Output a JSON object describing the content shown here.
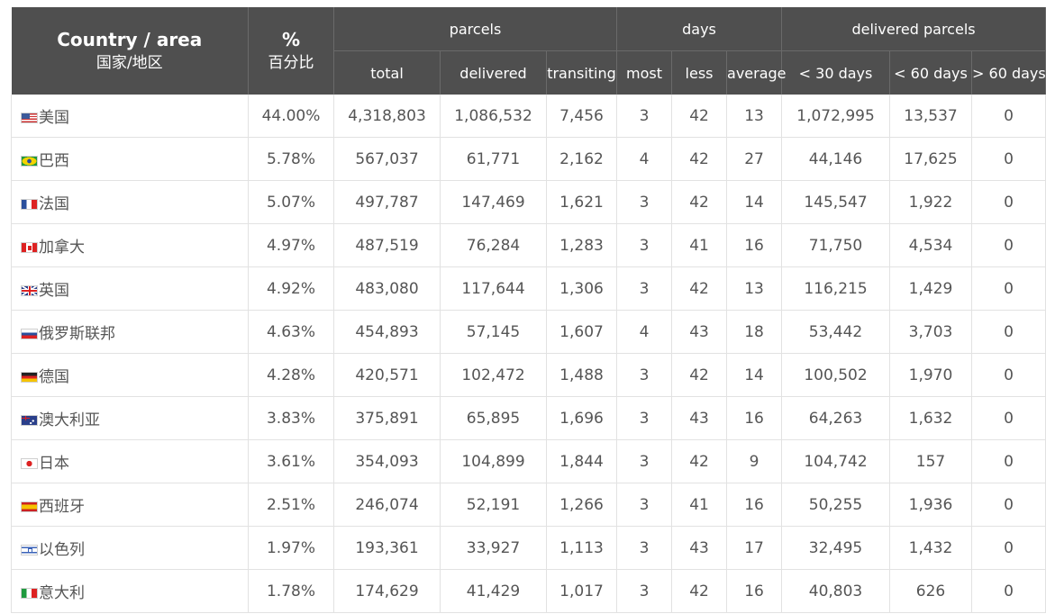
{
  "header": {
    "country_area": "Country / area",
    "country_area_zh": "国家/地区",
    "percent": "%",
    "percent_zh": "百分比",
    "groups": {
      "parcels": "parcels",
      "days": "days",
      "delivered_parcels": "delivered parcels"
    },
    "columns": {
      "total": "total",
      "delivered": "delivered",
      "transiting": "transiting",
      "most": "most",
      "less": "less",
      "average": "average",
      "lt30": "< 30 days",
      "lt60": "< 60 days",
      "gt60": "> 60 days"
    }
  },
  "rows": [
    {
      "flag": "us-flag-icon",
      "country": "美国",
      "percent": "44.00%",
      "total": "4,318,803",
      "delivered": "1,086,532",
      "transiting": "7,456",
      "most": "3",
      "less": "42",
      "average": "13",
      "lt30": "1,072,995",
      "lt60": "13,537",
      "gt60": "0"
    },
    {
      "flag": "br-flag-icon",
      "country": "巴西",
      "percent": "5.78%",
      "total": "567,037",
      "delivered": "61,771",
      "transiting": "2,162",
      "most": "4",
      "less": "42",
      "average": "27",
      "lt30": "44,146",
      "lt60": "17,625",
      "gt60": "0"
    },
    {
      "flag": "fr-flag-icon",
      "country": "法国",
      "percent": "5.07%",
      "total": "497,787",
      "delivered": "147,469",
      "transiting": "1,621",
      "most": "3",
      "less": "42",
      "average": "14",
      "lt30": "145,547",
      "lt60": "1,922",
      "gt60": "0"
    },
    {
      "flag": "ca-flag-icon",
      "country": "加拿大",
      "percent": "4.97%",
      "total": "487,519",
      "delivered": "76,284",
      "transiting": "1,283",
      "most": "3",
      "less": "41",
      "average": "16",
      "lt30": "71,750",
      "lt60": "4,534",
      "gt60": "0"
    },
    {
      "flag": "gb-flag-icon",
      "country": "英国",
      "percent": "4.92%",
      "total": "483,080",
      "delivered": "117,644",
      "transiting": "1,306",
      "most": "3",
      "less": "42",
      "average": "13",
      "lt30": "116,215",
      "lt60": "1,429",
      "gt60": "0"
    },
    {
      "flag": "ru-flag-icon",
      "country": "俄罗斯联邦",
      "percent": "4.63%",
      "total": "454,893",
      "delivered": "57,145",
      "transiting": "1,607",
      "most": "4",
      "less": "43",
      "average": "18",
      "lt30": "53,442",
      "lt60": "3,703",
      "gt60": "0"
    },
    {
      "flag": "de-flag-icon",
      "country": "德国",
      "percent": "4.28%",
      "total": "420,571",
      "delivered": "102,472",
      "transiting": "1,488",
      "most": "3",
      "less": "42",
      "average": "14",
      "lt30": "100,502",
      "lt60": "1,970",
      "gt60": "0"
    },
    {
      "flag": "au-flag-icon",
      "country": "澳大利亚",
      "percent": "3.83%",
      "total": "375,891",
      "delivered": "65,895",
      "transiting": "1,696",
      "most": "3",
      "less": "43",
      "average": "16",
      "lt30": "64,263",
      "lt60": "1,632",
      "gt60": "0"
    },
    {
      "flag": "jp-flag-icon",
      "country": "日本",
      "percent": "3.61%",
      "total": "354,093",
      "delivered": "104,899",
      "transiting": "1,844",
      "most": "3",
      "less": "42",
      "average": "9",
      "lt30": "104,742",
      "lt60": "157",
      "gt60": "0"
    },
    {
      "flag": "es-flag-icon",
      "country": "西班牙",
      "percent": "2.51%",
      "total": "246,074",
      "delivered": "52,191",
      "transiting": "1,266",
      "most": "3",
      "less": "41",
      "average": "16",
      "lt30": "50,255",
      "lt60": "1,936",
      "gt60": "0"
    },
    {
      "flag": "il-flag-icon",
      "country": "以色列",
      "percent": "1.97%",
      "total": "193,361",
      "delivered": "33,927",
      "transiting": "1,113",
      "most": "3",
      "less": "43",
      "average": "17",
      "lt30": "32,495",
      "lt60": "1,432",
      "gt60": "0"
    },
    {
      "flag": "it-flag-icon",
      "country": "意大利",
      "percent": "1.78%",
      "total": "174,629",
      "delivered": "41,429",
      "transiting": "1,017",
      "most": "3",
      "less": "42",
      "average": "16",
      "lt30": "40,803",
      "lt60": "626",
      "gt60": "0"
    }
  ]
}
